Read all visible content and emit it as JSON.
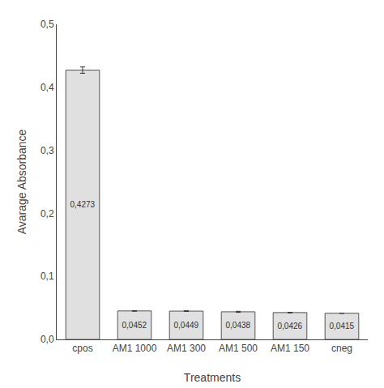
{
  "chart_data": {
    "type": "bar",
    "categories": [
      "cpos",
      "AM1 1000",
      "AM1 300",
      "AM1 500",
      "AM1 150",
      "cneg"
    ],
    "values": [
      0.4273,
      0.0452,
      0.0449,
      0.0438,
      0.0426,
      0.0415
    ],
    "errors": [
      0.005,
      0.0005,
      0.0005,
      0.0008,
      0.0005,
      0.0002
    ],
    "value_labels": [
      "0,4273",
      "0,0452",
      "0,0449",
      "0,0438",
      "0,0426",
      "0,0415"
    ],
    "data_labels": true,
    "color": "#e0e0e0",
    "xlabel": "Treatments",
    "ylabel": "Avarage Absorbance",
    "ylim": [
      0,
      0.5
    ],
    "yticks": [
      {
        "value": 0.0,
        "label": "0,0"
      },
      {
        "value": 0.1,
        "label": "0,1"
      },
      {
        "value": 0.2,
        "label": "0,2"
      },
      {
        "value": 0.3,
        "label": "0,3"
      },
      {
        "value": 0.4,
        "label": "0,4"
      },
      {
        "value": 0.5,
        "label": "0,5"
      }
    ],
    "grid": false
  }
}
